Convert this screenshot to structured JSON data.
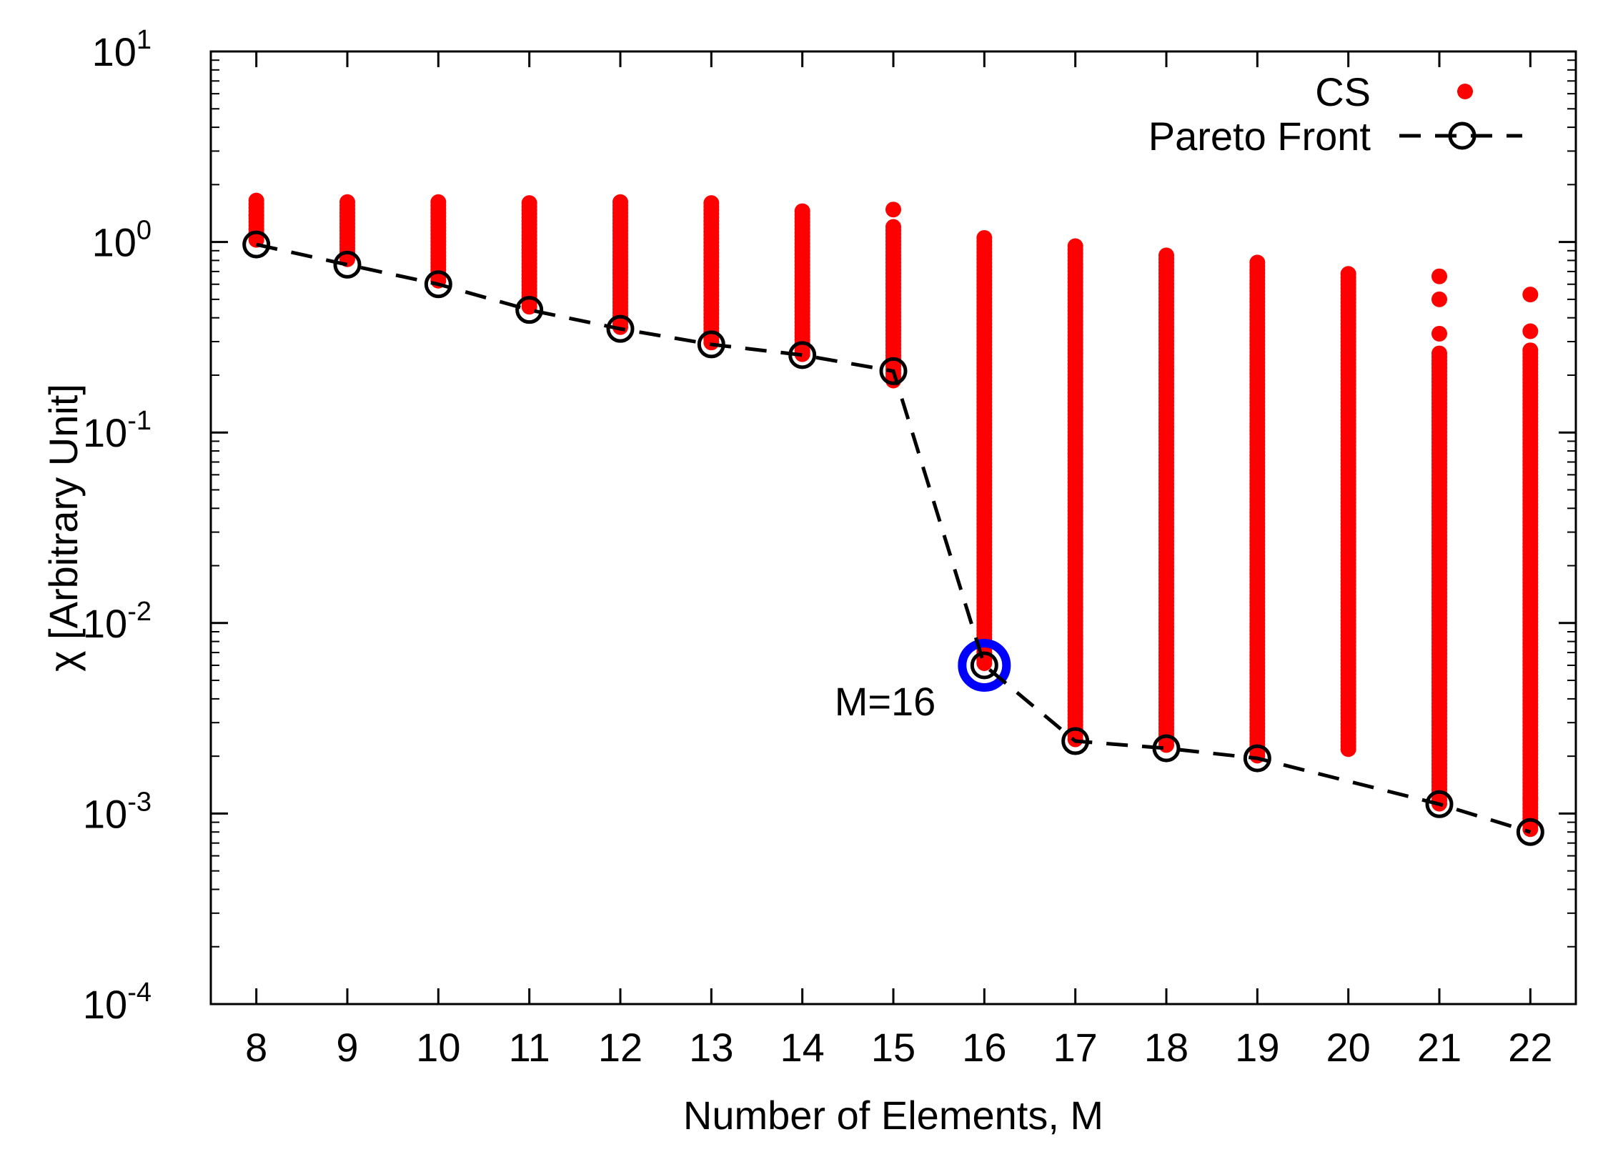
{
  "chart_data": {
    "type": "scatter",
    "title": "",
    "xlabel": "Number of Elements, M",
    "ylabel": "χ [Arbitrary Unit]",
    "yscale": "log",
    "xlim": [
      7.5,
      22.5
    ],
    "ylim": [
      0.0001,
      10
    ],
    "x_ticks": [
      8,
      9,
      10,
      11,
      12,
      13,
      14,
      15,
      16,
      17,
      18,
      19,
      20,
      21,
      22
    ],
    "y_ticks": [
      {
        "value": 0.0001,
        "base": "10",
        "exp": "-4"
      },
      {
        "value": 0.001,
        "base": "10",
        "exp": "-3"
      },
      {
        "value": 0.01,
        "base": "10",
        "exp": "-2"
      },
      {
        "value": 0.1,
        "base": "10",
        "exp": "-1"
      },
      {
        "value": 1,
        "base": "10",
        "exp": "0"
      },
      {
        "value": 10,
        "base": "10",
        "exp": "1"
      }
    ],
    "legend_position": "top-right",
    "series": [
      {
        "name": "CS",
        "style": "points",
        "color": "#ff0000",
        "ranges": [
          {
            "x": 8,
            "min": 1.0,
            "max": 1.65,
            "extra": [
              1.38
            ]
          },
          {
            "x": 9,
            "min": 0.78,
            "max": 1.62,
            "extra": []
          },
          {
            "x": 10,
            "min": 0.62,
            "max": 1.62,
            "extra": []
          },
          {
            "x": 11,
            "min": 0.45,
            "max": 1.6,
            "extra": []
          },
          {
            "x": 12,
            "min": 0.35,
            "max": 1.62,
            "extra": []
          },
          {
            "x": 13,
            "min": 0.29,
            "max": 1.6,
            "extra": []
          },
          {
            "x": 14,
            "min": 0.255,
            "max": 1.45,
            "extra": []
          },
          {
            "x": 15,
            "min": 0.18,
            "max": 1.2,
            "extra": [
              1.48
            ]
          },
          {
            "x": 16,
            "min": 0.006,
            "max": 1.05,
            "extra": []
          },
          {
            "x": 17,
            "min": 0.0024,
            "max": 0.95,
            "extra": []
          },
          {
            "x": 18,
            "min": 0.0022,
            "max": 0.85,
            "extra": []
          },
          {
            "x": 19,
            "min": 0.002,
            "max": 0.78,
            "extra": []
          },
          {
            "x": 20,
            "min": 0.0021,
            "max": 0.68,
            "extra": []
          },
          {
            "x": 21,
            "min": 0.0011,
            "max": 0.26,
            "extra": [
              0.33,
              0.5,
              0.66
            ]
          },
          {
            "x": 22,
            "min": 0.0008,
            "max": 0.27,
            "extra": [
              0.34,
              0.53,
              0.0012
            ]
          }
        ]
      },
      {
        "name": "Pareto Front",
        "style": "dashed line with open circles",
        "color": "#000000",
        "x": [
          8,
          9,
          10,
          11,
          12,
          13,
          14,
          15,
          16,
          17,
          18,
          19,
          21,
          22
        ],
        "y": [
          0.97,
          0.76,
          0.6,
          0.44,
          0.35,
          0.29,
          0.255,
          0.21,
          0.006,
          0.0024,
          0.0022,
          0.00195,
          0.00112,
          0.0008
        ]
      }
    ],
    "highlight": {
      "x": 16,
      "y": 0.006,
      "color": "#0000ff"
    },
    "annotations": [
      {
        "text": "M=16",
        "x": 16,
        "y": 0.006,
        "color": "#0000ff"
      }
    ]
  }
}
